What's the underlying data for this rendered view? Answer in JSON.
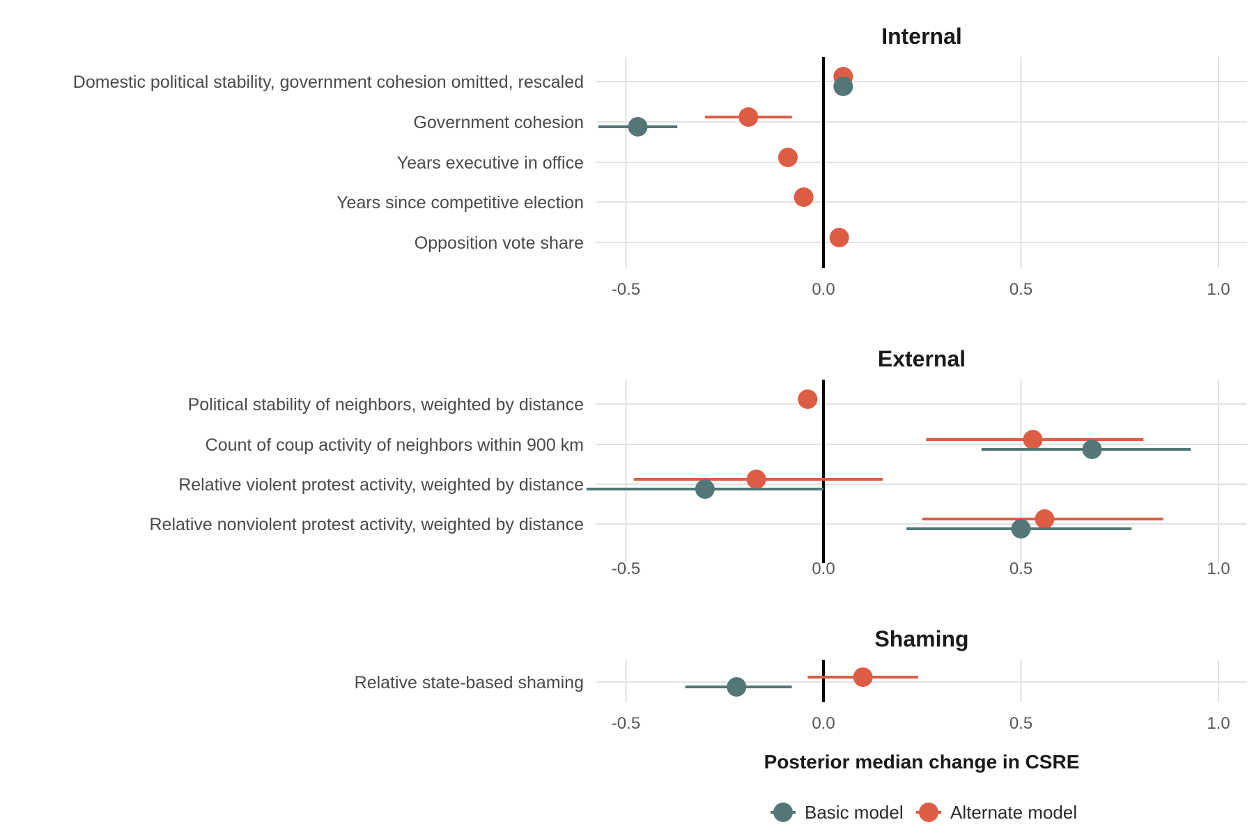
{
  "chart_data": {
    "type": "scatter",
    "subtype": "coefficient-plot",
    "xlabel": "Posterior median change in CSRE",
    "xlim": [
      -0.6,
      1.05
    ],
    "xticks": [
      -0.5,
      0.0,
      0.5,
      1.0
    ],
    "xtick_labels": [
      "-0.5",
      "0.0",
      "0.5",
      "1.0"
    ],
    "zero_line": 0,
    "grid": true,
    "legend_position": "bottom",
    "series": [
      {
        "name": "Basic model",
        "color": "#537677"
      },
      {
        "name": "Alternate model",
        "color": "#DC5D44"
      }
    ],
    "panels": [
      {
        "title": "Internal",
        "variables": [
          "Domestic political stability, government cohesion omitted, rescaled",
          "Government cohesion",
          "Years executive in office",
          "Years since competitive election",
          "Opposition vote share"
        ],
        "points": [
          {
            "variable": 0,
            "series": "Alternate model",
            "estimate": 0.05,
            "low": 0.05,
            "high": 0.05
          },
          {
            "variable": 0,
            "series": "Basic model",
            "estimate": 0.05,
            "low": 0.05,
            "high": 0.05
          },
          {
            "variable": 1,
            "series": "Alternate model",
            "estimate": -0.19,
            "low": -0.3,
            "high": -0.08
          },
          {
            "variable": 1,
            "series": "Basic model",
            "estimate": -0.47,
            "low": -0.57,
            "high": -0.37
          },
          {
            "variable": 2,
            "series": "Alternate model",
            "estimate": -0.09,
            "low": -0.09,
            "high": -0.09
          },
          {
            "variable": 3,
            "series": "Alternate model",
            "estimate": -0.05,
            "low": -0.05,
            "high": -0.05
          },
          {
            "variable": 4,
            "series": "Alternate model",
            "estimate": 0.04,
            "low": 0.04,
            "high": 0.04
          }
        ]
      },
      {
        "title": "External",
        "variables": [
          "Political stability of neighbors, weighted by distance",
          "Count of coup activity of neighbors within 900 km",
          "Relative violent protest activity, weighted by distance",
          "Relative nonviolent protest activity, weighted by distance"
        ],
        "points": [
          {
            "variable": 0,
            "series": "Alternate model",
            "estimate": -0.04,
            "low": -0.04,
            "high": -0.04
          },
          {
            "variable": 1,
            "series": "Alternate model",
            "estimate": 0.53,
            "low": 0.26,
            "high": 0.81
          },
          {
            "variable": 1,
            "series": "Basic model",
            "estimate": 0.68,
            "low": 0.4,
            "high": 0.93
          },
          {
            "variable": 2,
            "series": "Alternate model",
            "estimate": -0.17,
            "low": -0.48,
            "high": 0.15
          },
          {
            "variable": 2,
            "series": "Basic model",
            "estimate": -0.3,
            "low": -0.6,
            "high": 0.0
          },
          {
            "variable": 3,
            "series": "Alternate model",
            "estimate": 0.56,
            "low": 0.25,
            "high": 0.86
          },
          {
            "variable": 3,
            "series": "Basic model",
            "estimate": 0.5,
            "low": 0.21,
            "high": 0.78
          }
        ]
      },
      {
        "title": "Shaming",
        "variables": [
          "Relative state-based shaming"
        ],
        "points": [
          {
            "variable": 0,
            "series": "Alternate model",
            "estimate": 0.1,
            "low": -0.04,
            "high": 0.24
          },
          {
            "variable": 0,
            "series": "Basic model",
            "estimate": -0.22,
            "low": -0.35,
            "high": -0.08
          }
        ]
      }
    ]
  }
}
